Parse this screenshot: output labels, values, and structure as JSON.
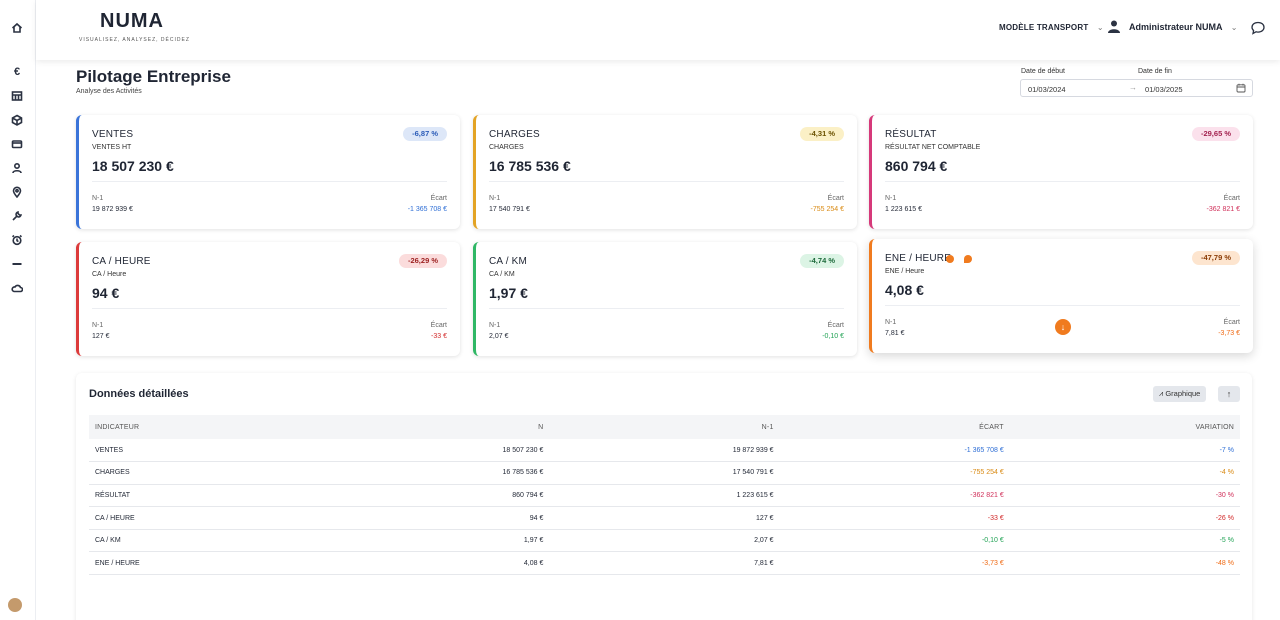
{
  "header": {
    "logo": "NUMA",
    "tagline": "VISUALISEZ, ANALYSEZ, DÉCIDEZ",
    "model_selector": "MODÈLE TRANSPORT",
    "user_name": "Administrateur NUMA"
  },
  "sidebar": {
    "items": [
      {
        "icon": "home-icon"
      },
      {
        "icon": "euro-icon"
      },
      {
        "icon": "table-icon"
      },
      {
        "icon": "box-icon"
      },
      {
        "icon": "credit-card-icon"
      },
      {
        "icon": "user-icon"
      },
      {
        "icon": "location-pin-icon"
      },
      {
        "icon": "wrench-icon"
      },
      {
        "icon": "alarm-clock-icon"
      },
      {
        "icon": "minus-icon"
      },
      {
        "icon": "cloud-icon"
      }
    ]
  },
  "page": {
    "title": "Pilotage Entreprise",
    "subtitle": "Analyse des Activités"
  },
  "dates": {
    "start_label": "Date de début",
    "end_label": "Date de fin",
    "start_value": "01/03/2024",
    "end_value": "01/03/2025",
    "separator": "→"
  },
  "cards": [
    {
      "title": "VENTES",
      "subtitle": "VENTES HT",
      "value": "18 507 230 €",
      "badge": "-6,87 %",
      "n1_label": "N-1",
      "n1": "19 872 939 €",
      "ecart_label": "Écart",
      "ecart": "-1 365 708 €",
      "accent": "#3a74d9",
      "badge_bg": "#dde7f8",
      "badge_fg": "#2b5cb8",
      "ecart_color": "#2f6fd6"
    },
    {
      "title": "CHARGES",
      "subtitle": "CHARGES",
      "value": "16 785 536 €",
      "badge": "-4,31 %",
      "n1_label": "N-1",
      "n1": "17 540 791 €",
      "ecart_label": "Écart",
      "ecart": "-755 254 €",
      "accent": "#e3a324",
      "badge_bg": "#fbf0c6",
      "badge_fg": "#6b5200",
      "ecart_color": "#d98a13"
    },
    {
      "title": "RÉSULTAT",
      "subtitle": "RÉSULTAT NET COMPTABLE",
      "value": "860 794 €",
      "badge": "-29,65 %",
      "n1_label": "N-1",
      "n1": "1 223 615 €",
      "ecart_label": "Écart",
      "ecart": "-362 821 €",
      "accent": "#d6397a",
      "badge_bg": "#fbe1ec",
      "badge_fg": "#a3224f",
      "ecart_color": "#d0305a"
    },
    {
      "title": "CA / HEURE",
      "subtitle": "CA / Heure",
      "value": "94 €",
      "badge": "-26,29 %",
      "n1_label": "N-1",
      "n1": "127 €",
      "ecart_label": "Écart",
      "ecart": "-33 €",
      "accent": "#dc3a3a",
      "badge_bg": "#fbdcdc",
      "badge_fg": "#9c1f1f",
      "ecart_color": "#d22a2a"
    },
    {
      "title": "CA / KM",
      "subtitle": "CA / KM",
      "value": "1,97 €",
      "badge": "-4,74 %",
      "n1_label": "N-1",
      "n1": "2,07 €",
      "ecart_label": "Écart",
      "ecart": "-0,10 €",
      "accent": "#2fb765",
      "badge_bg": "#dcf4e5",
      "badge_fg": "#1d6a3b",
      "ecart_color": "#23a356"
    },
    {
      "title": "ENE / HEURE",
      "subtitle": "ENE / Heure",
      "value": "4,08 €",
      "badge": "-47,79 %",
      "n1_label": "N-1",
      "n1": "7,81 €",
      "ecart_label": "Écart",
      "ecart": "-3,73 €",
      "accent": "#f07b1f",
      "badge_bg": "#fde5cf",
      "badge_fg": "#8b3c06",
      "ecart_color": "#ef6a14"
    }
  ],
  "detail": {
    "title": "Données détaillées",
    "graph_button": "Graphique",
    "columns": [
      "INDICATEUR",
      "N",
      "N-1",
      "ÉCART",
      "VARIATION"
    ],
    "rows": [
      {
        "indicator": "VENTES",
        "n": "18 507 230 €",
        "n1": "19 872 939 €",
        "ecart": "-1 365 708 €",
        "variation": "-7 %",
        "color": "#2f6fd6"
      },
      {
        "indicator": "CHARGES",
        "n": "16 785 536 €",
        "n1": "17 540 791 €",
        "ecart": "-755 254 €",
        "variation": "-4 %",
        "color": "#d98a13"
      },
      {
        "indicator": "RÉSULTAT",
        "n": "860 794 €",
        "n1": "1 223 615 €",
        "ecart": "-362 821 €",
        "variation": "-30 %",
        "color": "#d0305a"
      },
      {
        "indicator": "CA / HEURE",
        "n": "94 €",
        "n1": "127 €",
        "ecart": "-33 €",
        "variation": "-26 %",
        "color": "#d22a2a"
      },
      {
        "indicator": "CA / KM",
        "n": "1,97 €",
        "n1": "2,07 €",
        "ecart": "-0,10 €",
        "variation": "-5 %",
        "color": "#23a356"
      },
      {
        "indicator": "ENE / HEURE",
        "n": "4,08 €",
        "n1": "7,81 €",
        "ecart": "-3,73 €",
        "variation": "-48 %",
        "color": "#ef6a14"
      }
    ]
  }
}
